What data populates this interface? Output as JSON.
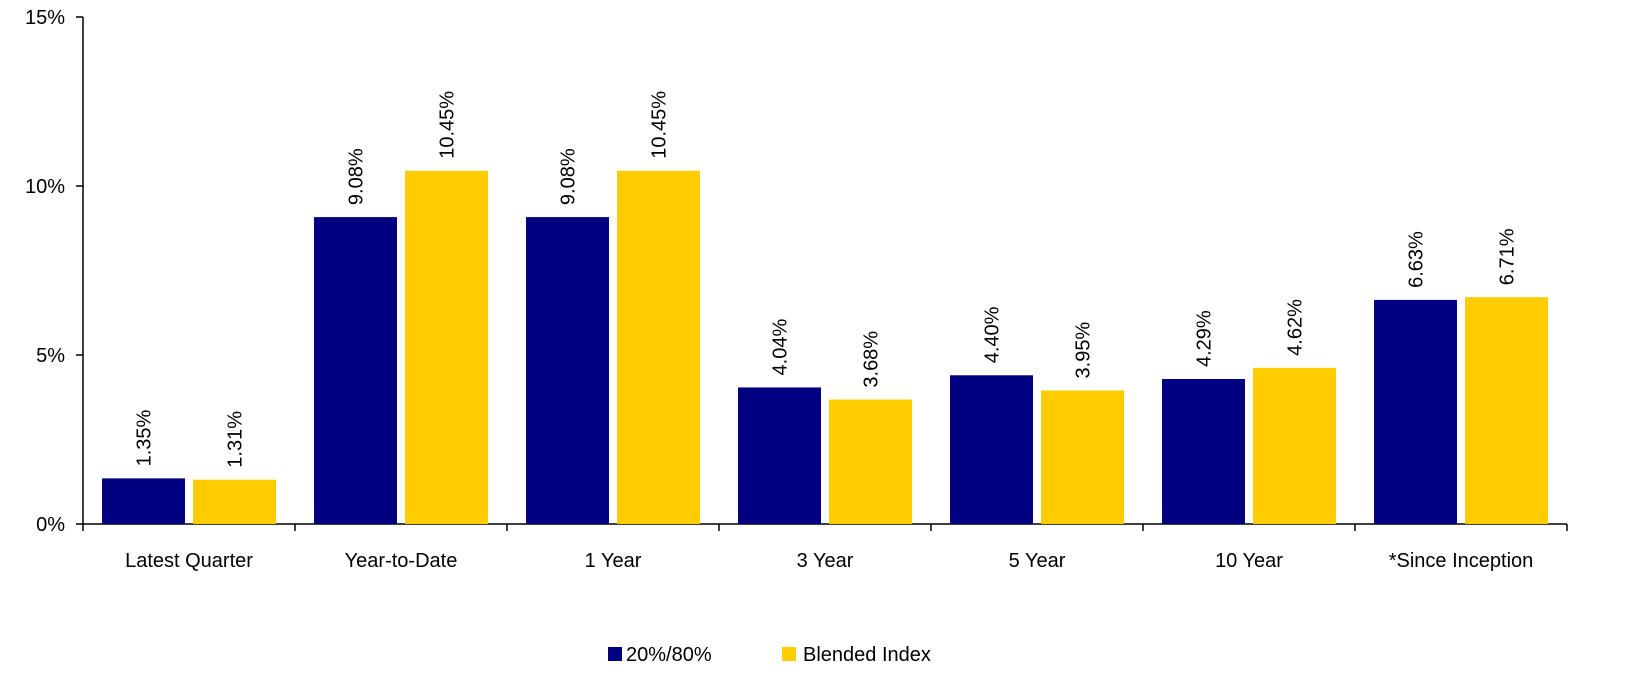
{
  "chart_data": {
    "type": "bar",
    "categories": [
      "Latest Quarter",
      "Year-to-Date",
      "1 Year",
      "3 Year",
      "5 Year",
      "10 Year",
      "*Since Inception"
    ],
    "series": [
      {
        "name": "20%/80%",
        "color": "#000080",
        "values": [
          1.35,
          9.08,
          9.08,
          4.04,
          4.4,
          4.29,
          6.63
        ],
        "labels": [
          "1.35%",
          "9.08%",
          "9.08%",
          "4.04%",
          "4.40%",
          "4.29%",
          "6.63%"
        ]
      },
      {
        "name": "Blended Index",
        "color": "#FFCC00",
        "values": [
          1.31,
          10.45,
          10.45,
          3.68,
          3.95,
          4.62,
          6.71
        ],
        "labels": [
          "1.31%",
          "10.45%",
          "10.45%",
          "3.68%",
          "3.95%",
          "4.62%",
          "6.71%"
        ]
      }
    ],
    "yticks": [
      0,
      5,
      10,
      15
    ],
    "ytick_labels": [
      "0%",
      "5%",
      "10%",
      "15%"
    ],
    "ylim": [
      0,
      15
    ],
    "grid": false,
    "legend_position": "bottom-center"
  }
}
